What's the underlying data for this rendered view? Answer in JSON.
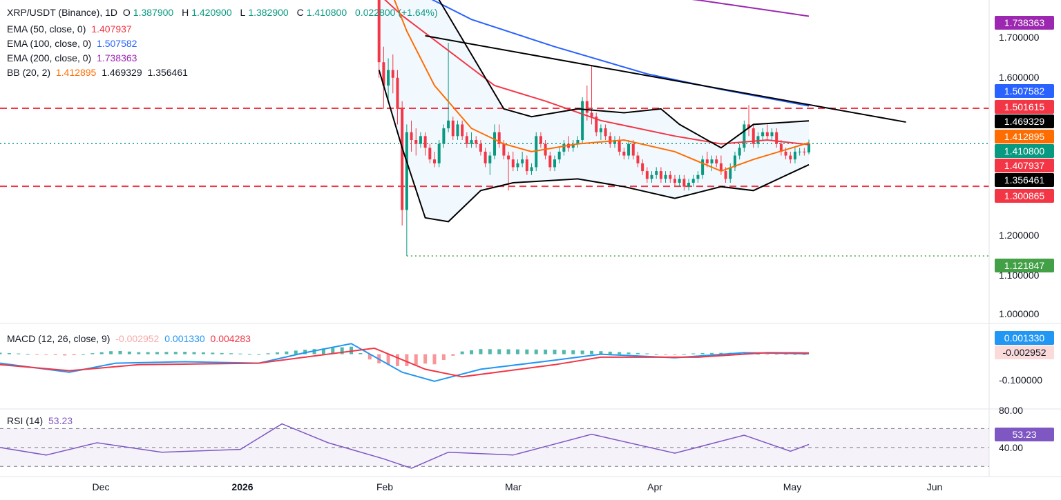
{
  "header": {
    "symbol": "XRP/USDT (Binance), 1D",
    "o_label": "O",
    "o_value": "1.387900",
    "h_label": "H",
    "h_value": "1.420900",
    "l_label": "L",
    "l_value": "1.382900",
    "c_label": "C",
    "c_value": "1.410800",
    "change": "0.022800 (+1.64%)"
  },
  "legend": {
    "ema50_label": "EMA (50, close, 0)",
    "ema50_value": "1.407937",
    "ema100_label": "EMA (100, close, 0)",
    "ema100_value": "1.507582",
    "ema200_label": "EMA (200, close, 0)",
    "ema200_value": "1.738363",
    "bb_label": "BB (20, 2)",
    "bb_basis": "1.412895",
    "bb_upper": "1.469329",
    "bb_lower": "1.356461",
    "macd_label": "MACD (12, 26, close, 9)",
    "macd_hist": "-0.002952",
    "macd_line": "0.001330",
    "macd_signal": "0.004283",
    "rsi_label": "RSI (14)",
    "rsi_value": "53.23"
  },
  "price_axis": [
    "1.700000",
    "1.600000",
    "1.200000",
    "1.100000",
    "1.000000"
  ],
  "macd_axis": [
    "-0.100000"
  ],
  "rsi_axis": [
    "80.00",
    "40.00"
  ],
  "time_axis": [
    "Dec",
    "2026",
    "Feb",
    "Mar",
    "Apr",
    "May",
    "Jun"
  ],
  "price_tags": [
    {
      "text": "1.738363",
      "color": "#9c27b0"
    },
    {
      "text": "1.507582",
      "color": "#2962ff"
    },
    {
      "text": "1.501615",
      "color": "#f23645"
    },
    {
      "text": "1.469329",
      "color": "#000000"
    },
    {
      "text": "1.412895",
      "color": "#ff6d00"
    },
    {
      "text": "1.410800",
      "color": "#089981"
    },
    {
      "text": "1.407937",
      "color": "#f23645"
    },
    {
      "text": "1.356461",
      "color": "#000000"
    },
    {
      "text": "1.300865",
      "color": "#f23645"
    },
    {
      "text": "1.121847",
      "color": "#43a047"
    }
  ],
  "macd_tags": [
    {
      "text": "0.001330",
      "color": "#2196f3"
    },
    {
      "text": "-0.002952",
      "color": "#fbdada"
    }
  ],
  "rsi_tags": [
    {
      "text": "53.23",
      "color": "#7e57c2"
    }
  ],
  "chart_data": {
    "type": "line",
    "pair": "XRP/USDT",
    "interval": "1D",
    "x_range": [
      "2025-11-10",
      "2026-06-12"
    ],
    "price_ylim": [
      0.95,
      1.78
    ],
    "horizontal_levels": [
      {
        "value": 1.501615,
        "style": "dashed",
        "color": "#f23645"
      },
      {
        "value": 1.300865,
        "style": "dashed",
        "color": "#f23645"
      },
      {
        "value": 1.121847,
        "style": "dotted",
        "color": "#43a047",
        "from": "2026-02-06"
      },
      {
        "value": 1.4108,
        "style": "dotted",
        "color": "#089981"
      }
    ],
    "trendline": [
      [
        "2026-02-10",
        1.688
      ],
      [
        "2026-05-25",
        1.466
      ]
    ],
    "candles": [
      [
        "2026-01-31",
        1.8,
        1.82,
        1.58,
        1.62
      ],
      [
        "2026-02-01",
        1.62,
        1.66,
        1.5,
        1.56
      ],
      [
        "2026-02-02",
        1.56,
        1.63,
        1.52,
        1.6
      ],
      [
        "2026-02-03",
        1.6,
        1.64,
        1.54,
        1.58
      ],
      [
        "2026-02-04",
        1.58,
        1.6,
        1.46,
        1.5
      ],
      [
        "2026-02-05",
        1.5,
        1.52,
        1.2,
        1.24
      ],
      [
        "2026-02-06",
        1.24,
        1.46,
        1.122,
        1.44
      ],
      [
        "2026-02-07",
        1.44,
        1.47,
        1.39,
        1.42
      ],
      [
        "2026-02-08",
        1.42,
        1.45,
        1.38,
        1.41
      ],
      [
        "2026-02-09",
        1.41,
        1.44,
        1.4,
        1.43
      ],
      [
        "2026-02-10",
        1.43,
        1.44,
        1.38,
        1.4
      ],
      [
        "2026-02-11",
        1.4,
        1.41,
        1.36,
        1.37
      ],
      [
        "2026-02-12",
        1.37,
        1.39,
        1.35,
        1.36
      ],
      [
        "2026-02-13",
        1.36,
        1.42,
        1.35,
        1.41
      ],
      [
        "2026-02-14",
        1.41,
        1.46,
        1.4,
        1.45
      ],
      [
        "2026-02-15",
        1.45,
        1.67,
        1.44,
        1.47
      ],
      [
        "2026-02-16",
        1.47,
        1.48,
        1.42,
        1.43
      ],
      [
        "2026-02-17",
        1.43,
        1.47,
        1.42,
        1.46
      ],
      [
        "2026-02-18",
        1.46,
        1.47,
        1.42,
        1.43
      ],
      [
        "2026-02-19",
        1.43,
        1.44,
        1.4,
        1.41
      ],
      [
        "2026-02-20",
        1.41,
        1.44,
        1.4,
        1.42
      ],
      [
        "2026-02-21",
        1.42,
        1.43,
        1.4,
        1.41
      ],
      [
        "2026-02-22",
        1.41,
        1.42,
        1.38,
        1.39
      ],
      [
        "2026-02-23",
        1.39,
        1.4,
        1.35,
        1.36
      ],
      [
        "2026-02-24",
        1.36,
        1.39,
        1.33,
        1.38
      ],
      [
        "2026-02-25",
        1.38,
        1.46,
        1.37,
        1.44
      ],
      [
        "2026-02-26",
        1.44,
        1.46,
        1.4,
        1.41
      ],
      [
        "2026-02-27",
        1.41,
        1.42,
        1.37,
        1.38
      ],
      [
        "2026-02-28",
        1.38,
        1.39,
        1.29,
        1.37
      ],
      [
        "2026-03-01",
        1.37,
        1.39,
        1.34,
        1.35
      ],
      [
        "2026-03-02",
        1.35,
        1.37,
        1.34,
        1.36
      ],
      [
        "2026-03-03",
        1.36,
        1.39,
        1.35,
        1.37
      ],
      [
        "2026-03-04",
        1.37,
        1.38,
        1.33,
        1.34
      ],
      [
        "2026-03-05",
        1.34,
        1.36,
        1.33,
        1.35
      ],
      [
        "2026-03-06",
        1.35,
        1.44,
        1.34,
        1.43
      ],
      [
        "2026-03-07",
        1.43,
        1.44,
        1.4,
        1.41
      ],
      [
        "2026-03-08",
        1.41,
        1.42,
        1.37,
        1.38
      ],
      [
        "2026-03-09",
        1.38,
        1.39,
        1.34,
        1.35
      ],
      [
        "2026-03-10",
        1.35,
        1.38,
        1.34,
        1.37
      ],
      [
        "2026-03-11",
        1.37,
        1.4,
        1.36,
        1.39
      ],
      [
        "2026-03-12",
        1.39,
        1.42,
        1.38,
        1.41
      ],
      [
        "2026-03-13",
        1.41,
        1.43,
        1.39,
        1.4
      ],
      [
        "2026-03-14",
        1.4,
        1.42,
        1.39,
        1.41
      ],
      [
        "2026-03-15",
        1.41,
        1.43,
        1.4,
        1.42
      ],
      [
        "2026-03-16",
        1.42,
        1.53,
        1.41,
        1.52
      ],
      [
        "2026-03-17",
        1.52,
        1.56,
        1.47,
        1.49
      ],
      [
        "2026-03-18",
        1.49,
        1.61,
        1.46,
        1.48
      ],
      [
        "2026-03-19",
        1.48,
        1.49,
        1.43,
        1.44
      ],
      [
        "2026-03-20",
        1.44,
        1.46,
        1.42,
        1.45
      ],
      [
        "2026-03-21",
        1.45,
        1.46,
        1.42,
        1.43
      ],
      [
        "2026-03-22",
        1.43,
        1.44,
        1.4,
        1.41
      ],
      [
        "2026-03-23",
        1.41,
        1.43,
        1.4,
        1.42
      ],
      [
        "2026-03-24",
        1.42,
        1.43,
        1.38,
        1.39
      ],
      [
        "2026-03-25",
        1.39,
        1.4,
        1.37,
        1.38
      ],
      [
        "2026-03-26",
        1.38,
        1.42,
        1.37,
        1.41
      ],
      [
        "2026-03-27",
        1.41,
        1.42,
        1.37,
        1.38
      ],
      [
        "2026-03-28",
        1.38,
        1.39,
        1.35,
        1.36
      ],
      [
        "2026-03-29",
        1.36,
        1.37,
        1.33,
        1.34
      ],
      [
        "2026-03-30",
        1.34,
        1.35,
        1.31,
        1.32
      ],
      [
        "2026-03-31",
        1.32,
        1.34,
        1.31,
        1.33
      ],
      [
        "2026-04-01",
        1.33,
        1.35,
        1.32,
        1.34
      ],
      [
        "2026-04-02",
        1.34,
        1.35,
        1.31,
        1.32
      ],
      [
        "2026-04-03",
        1.32,
        1.34,
        1.31,
        1.33
      ],
      [
        "2026-04-04",
        1.33,
        1.34,
        1.31,
        1.32
      ],
      [
        "2026-04-05",
        1.32,
        1.33,
        1.3,
        1.31
      ],
      [
        "2026-04-06",
        1.31,
        1.33,
        1.3,
        1.32
      ],
      [
        "2026-04-07",
        1.32,
        1.33,
        1.29,
        1.3
      ],
      [
        "2026-04-08",
        1.3,
        1.32,
        1.29,
        1.31
      ],
      [
        "2026-04-09",
        1.31,
        1.33,
        1.3,
        1.32
      ],
      [
        "2026-04-10",
        1.32,
        1.34,
        1.31,
        1.33
      ],
      [
        "2026-04-11",
        1.33,
        1.38,
        1.32,
        1.37
      ],
      [
        "2026-04-12",
        1.37,
        1.39,
        1.35,
        1.36
      ],
      [
        "2026-04-13",
        1.36,
        1.38,
        1.34,
        1.37
      ],
      [
        "2026-04-14",
        1.37,
        1.38,
        1.35,
        1.36
      ],
      [
        "2026-04-15",
        1.36,
        1.38,
        1.33,
        1.34
      ],
      [
        "2026-04-16",
        1.34,
        1.35,
        1.31,
        1.32
      ],
      [
        "2026-04-17",
        1.32,
        1.36,
        1.31,
        1.35
      ],
      [
        "2026-04-18",
        1.35,
        1.39,
        1.34,
        1.38
      ],
      [
        "2026-04-19",
        1.38,
        1.41,
        1.37,
        1.4
      ],
      [
        "2026-04-20",
        1.4,
        1.47,
        1.39,
        1.46
      ],
      [
        "2026-04-21",
        1.46,
        1.51,
        1.43,
        1.45
      ],
      [
        "2026-04-22",
        1.45,
        1.46,
        1.4,
        1.41
      ],
      [
        "2026-04-23",
        1.41,
        1.44,
        1.4,
        1.43
      ],
      [
        "2026-04-24",
        1.43,
        1.45,
        1.42,
        1.44
      ],
      [
        "2026-04-25",
        1.44,
        1.46,
        1.42,
        1.43
      ],
      [
        "2026-04-26",
        1.43,
        1.45,
        1.42,
        1.44
      ],
      [
        "2026-04-27",
        1.44,
        1.45,
        1.4,
        1.41
      ],
      [
        "2026-04-28",
        1.41,
        1.42,
        1.38,
        1.39
      ],
      [
        "2026-04-29",
        1.39,
        1.4,
        1.37,
        1.38
      ],
      [
        "2026-04-30",
        1.38,
        1.39,
        1.36,
        1.37
      ],
      [
        "2026-05-01",
        1.37,
        1.4,
        1.36,
        1.39
      ],
      [
        "2026-05-02",
        1.39,
        1.4,
        1.38,
        1.39
      ],
      [
        "2026-05-03",
        1.39,
        1.4,
        1.38,
        1.388
      ],
      [
        "2026-05-04",
        1.3879,
        1.4209,
        1.3829,
        1.4108
      ]
    ],
    "series": [
      {
        "name": "EMA 200",
        "color": "#9c27b0",
        "points": [
          [
            "2026-01-20",
            1.85
          ],
          [
            "2026-02-15",
            1.84
          ],
          [
            "2026-03-10",
            1.82
          ],
          [
            "2026-04-10",
            1.78
          ],
          [
            "2026-05-04",
            1.738363
          ]
        ]
      },
      {
        "name": "EMA 100",
        "color": "#2962ff",
        "points": [
          [
            "2025-12-20",
            1.95
          ],
          [
            "2026-01-20",
            1.9
          ],
          [
            "2026-02-05",
            1.82
          ],
          [
            "2026-02-20",
            1.73
          ],
          [
            "2026-03-10",
            1.66
          ],
          [
            "2026-03-30",
            1.59
          ],
          [
            "2026-04-15",
            1.55
          ],
          [
            "2026-05-04",
            1.507582
          ]
        ]
      },
      {
        "name": "EMA 50",
        "color": "#f23645",
        "points": [
          [
            "2026-01-25",
            1.86
          ],
          [
            "2026-02-05",
            1.74
          ],
          [
            "2026-02-15",
            1.65
          ],
          [
            "2026-02-25",
            1.56
          ],
          [
            "2026-03-08",
            1.52
          ],
          [
            "2026-03-20",
            1.47
          ],
          [
            "2026-04-05",
            1.43
          ],
          [
            "2026-04-15",
            1.41
          ],
          [
            "2026-04-25",
            1.42
          ],
          [
            "2026-05-04",
            1.407937
          ]
        ]
      },
      {
        "name": "BB basis",
        "color": "#ff6d00",
        "points": [
          [
            "2026-01-31",
            1.88
          ],
          [
            "2026-02-06",
            1.7
          ],
          [
            "2026-02-12",
            1.56
          ],
          [
            "2026-02-20",
            1.45
          ],
          [
            "2026-02-27",
            1.41
          ],
          [
            "2026-03-05",
            1.39
          ],
          [
            "2026-03-15",
            1.41
          ],
          [
            "2026-03-25",
            1.42
          ],
          [
            "2026-04-05",
            1.39
          ],
          [
            "2026-04-15",
            1.34
          ],
          [
            "2026-04-22",
            1.37
          ],
          [
            "2026-05-04",
            1.412895
          ]
        ]
      },
      {
        "name": "BB upper",
        "color": "#000000",
        "points": [
          [
            "2026-01-31",
            1.97
          ],
          [
            "2026-02-06",
            1.9
          ],
          [
            "2026-02-12",
            1.8
          ],
          [
            "2026-02-20",
            1.64
          ],
          [
            "2026-02-27",
            1.5
          ],
          [
            "2026-03-05",
            1.48
          ],
          [
            "2026-03-15",
            1.5
          ],
          [
            "2026-03-25",
            1.49
          ],
          [
            "2026-04-02",
            1.5
          ],
          [
            "2026-04-06",
            1.46
          ],
          [
            "2026-04-15",
            1.4
          ],
          [
            "2026-04-22",
            1.46
          ],
          [
            "2026-05-04",
            1.469329
          ]
        ]
      },
      {
        "name": "BB lower",
        "color": "#000000",
        "points": [
          [
            "2026-01-31",
            1.6
          ],
          [
            "2026-02-05",
            1.4
          ],
          [
            "2026-02-10",
            1.22
          ],
          [
            "2026-02-15",
            1.21
          ],
          [
            "2026-02-22",
            1.29
          ],
          [
            "2026-03-01",
            1.31
          ],
          [
            "2026-03-15",
            1.32
          ],
          [
            "2026-03-25",
            1.3
          ],
          [
            "2026-04-05",
            1.27
          ],
          [
            "2026-04-15",
            1.3
          ],
          [
            "2026-04-22",
            1.29
          ],
          [
            "2026-05-04",
            1.356461
          ]
        ]
      }
    ],
    "macd": {
      "ylim": [
        -0.18,
        0.1
      ],
      "macd_line": [
        [
          "2025-11-10",
          -0.03
        ],
        [
          "2025-11-25",
          -0.06
        ],
        [
          "2025-12-05",
          -0.03
        ],
        [
          "2025-12-20",
          -0.025
        ],
        [
          "2026-01-05",
          -0.03
        ],
        [
          "2026-01-15",
          0.005
        ],
        [
          "2026-01-25",
          0.035
        ],
        [
          "2026-02-05",
          -0.06
        ],
        [
          "2026-02-12",
          -0.09
        ],
        [
          "2026-02-22",
          -0.05
        ],
        [
          "2026-03-10",
          -0.02
        ],
        [
          "2026-03-20",
          0.0
        ],
        [
          "2026-04-05",
          -0.012
        ],
        [
          "2026-04-20",
          0.005
        ],
        [
          "2026-05-04",
          0.00133
        ]
      ],
      "signal_line": [
        [
          "2025-11-10",
          -0.035
        ],
        [
          "2025-11-25",
          -0.055
        ],
        [
          "2025-12-10",
          -0.035
        ],
        [
          "2026-01-05",
          -0.03
        ],
        [
          "2026-01-15",
          -0.01
        ],
        [
          "2026-01-30",
          0.02
        ],
        [
          "2026-02-10",
          -0.05
        ],
        [
          "2026-02-18",
          -0.075
        ],
        [
          "2026-03-10",
          -0.035
        ],
        [
          "2026-03-20",
          -0.01
        ],
        [
          "2026-04-10",
          -0.01
        ],
        [
          "2026-04-25",
          0.005
        ],
        [
          "2026-05-04",
          0.004283
        ]
      ]
    },
    "rsi": {
      "ylim": [
        20,
        90
      ],
      "bands": [
        30,
        50,
        70
      ],
      "points": [
        [
          "2025-11-10",
          50
        ],
        [
          "2025-11-20",
          42
        ],
        [
          "2025-12-01",
          55
        ],
        [
          "2025-12-15",
          45
        ],
        [
          "2026-01-01",
          48
        ],
        [
          "2026-01-10",
          75
        ],
        [
          "2026-01-20",
          55
        ],
        [
          "2026-02-01",
          38
        ],
        [
          "2026-02-07",
          28
        ],
        [
          "2026-02-15",
          45
        ],
        [
          "2026-03-01",
          42
        ],
        [
          "2026-03-18",
          64
        ],
        [
          "2026-04-05",
          44
        ],
        [
          "2026-04-20",
          63
        ],
        [
          "2026-04-30",
          46
        ],
        [
          "2026-05-04",
          53.23
        ]
      ]
    }
  }
}
